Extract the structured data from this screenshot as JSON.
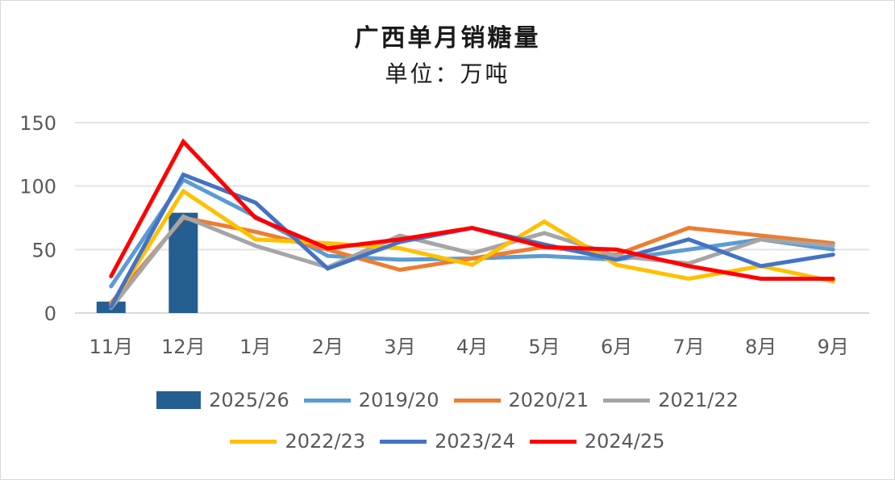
{
  "chart_data": {
    "type": "bar+line",
    "title": "广西单月销糖量",
    "subtitle": "单位：万吨",
    "categories": [
      "11月",
      "12月",
      "1月",
      "2月",
      "3月",
      "4月",
      "5月",
      "6月",
      "7月",
      "8月",
      "9月"
    ],
    "ylim": [
      0,
      150
    ],
    "yticks": [
      0,
      50,
      100,
      150
    ],
    "grid": true,
    "legend_position": "bottom",
    "series": [
      {
        "name": "2025/26",
        "type": "bar",
        "color": "#255E91",
        "values": [
          9,
          79,
          null,
          null,
          null,
          null,
          null,
          null,
          null,
          null,
          null
        ]
      },
      {
        "name": "2019/20",
        "type": "line",
        "color": "#5B9BD5",
        "values": [
          21,
          105,
          76,
          45,
          42,
          43,
          45,
          42,
          50,
          58,
          50
        ]
      },
      {
        "name": "2020/21",
        "type": "line",
        "color": "#ED7D31",
        "values": [
          8,
          75,
          64,
          50,
          34,
          43,
          52,
          46,
          67,
          61,
          55
        ]
      },
      {
        "name": "2021/22",
        "type": "line",
        "color": "#A5A5A5",
        "values": [
          4,
          76,
          53,
          36,
          61,
          47,
          63,
          45,
          39,
          58,
          53
        ]
      },
      {
        "name": "2022/23",
        "type": "line",
        "color": "#FFC000",
        "values": [
          6,
          96,
          58,
          55,
          51,
          38,
          72,
          38,
          27,
          37,
          25
        ]
      },
      {
        "name": "2023/24",
        "type": "line",
        "color": "#4472C4",
        "values": [
          5,
          109,
          87,
          35,
          56,
          67,
          54,
          42,
          58,
          37,
          46
        ]
      },
      {
        "name": "2024/25",
        "type": "line",
        "color": "#FF0000",
        "values": [
          29,
          135,
          75,
          51,
          58,
          67,
          52,
          50,
          37,
          27,
          27
        ]
      }
    ]
  }
}
